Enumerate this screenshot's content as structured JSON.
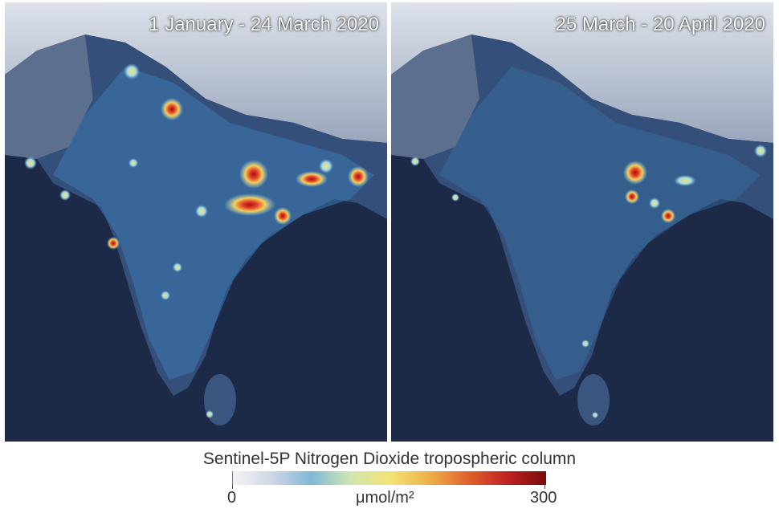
{
  "panels": [
    {
      "label": "1 January - 24 March 2020"
    },
    {
      "label": "25 March - 20 April 2020"
    }
  ],
  "legend": {
    "title": "Sentinel-5P Nitrogen Dioxide tropospheric column",
    "unit": "μmol/m²",
    "min_label": "0",
    "max_label": "300",
    "scale_min": 0,
    "scale_max": 300,
    "colors": [
      "#f4f4f4",
      "#cfd6e6",
      "#7fb8d8",
      "#cfe6b0",
      "#f3e476",
      "#efb24a",
      "#e0622c",
      "#c02222",
      "#7a0a0a"
    ]
  },
  "colors": {
    "ocean": "#1c2a47",
    "land_base": "#34507a",
    "mountains": "#cdd4e0",
    "hotspot_core": "#d62020",
    "hotspot_mid": "#f0c040"
  }
}
